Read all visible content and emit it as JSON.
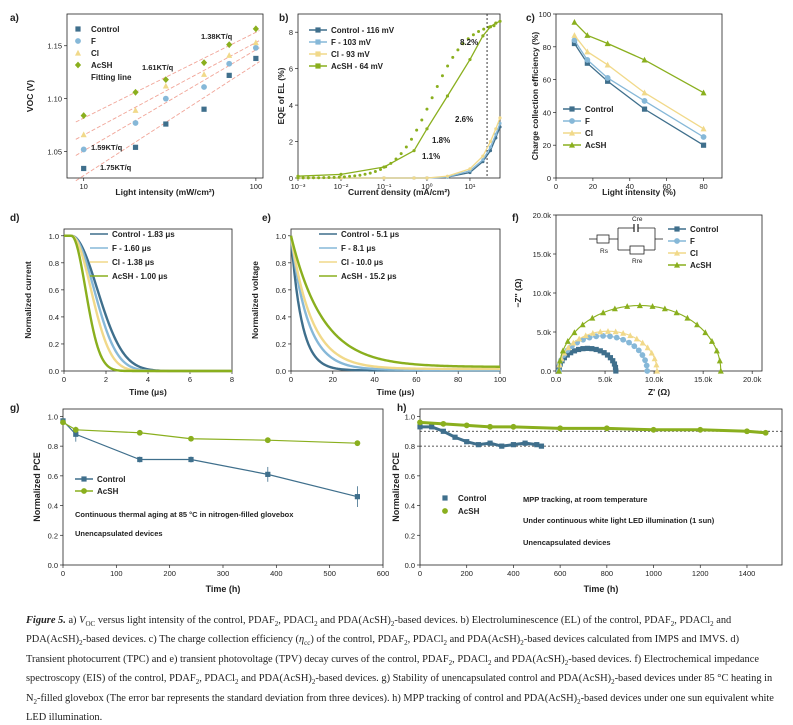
{
  "colors": {
    "control": "#3f6f8c",
    "F": "#86b8d8",
    "Cl": "#f1d98a",
    "AcSH": "#8aaf1e",
    "fit_line": "#f1a598",
    "axis": "#222222"
  },
  "caption": {
    "label": "Figure 5.",
    "parts": [
      " a) ",
      "V",
      "OC",
      " versus light intensity of the control, PDAF",
      "2",
      ", PDACl",
      "2",
      " and PDA(AcSH)",
      "2",
      "-based devices. b) Electroluminescence (EL) of the control, PDAF",
      "2",
      ", PDACl",
      "2",
      " and PDA(AcSH)",
      "2",
      "-based devices. c) The charge collection efficiency (",
      "η",
      "cc",
      ") of the control, PDAF",
      "2",
      ", PDACl",
      "2",
      " and PDA(AcSH)",
      "2",
      "-based devices calculated from IMPS and IMVS. d) Transient photocurrent (TPC) and e) transient photovoltage (TPV) decay curves of the control, PDAF",
      "2",
      ", PDACl",
      "2",
      " and PDA(AcSH)",
      "2",
      "-based devices. f) Electrochemical impedance spectroscopy (EIS) of the control, PDAF",
      "2",
      ", PDACl",
      "2",
      " and PDA(AcSH)",
      "2",
      "-based devices. g) Stability of unencapsulated control and PDA(AcSH)",
      "2",
      "-based devices under 85 °C heating in N",
      "2",
      "-filled glovebox (The error bar represents the standard deviation from three devices). h) MPP tracking of control and PDA(AcSH)",
      "2",
      "-based devices under one sun equivalent white LED illumination."
    ]
  },
  "chart_data": [
    {
      "panel": "a)",
      "type": "scatter",
      "xlabel": "Light intensity (mW/cm²)",
      "ylabel": "VOC (V)",
      "xscale": "log",
      "xlim": [
        8,
        110
      ],
      "ylim": [
        1.025,
        1.18
      ],
      "xticks": [
        10,
        100
      ],
      "xtick_labels": [
        "10",
        "100"
      ],
      "yticks": [
        1.05,
        1.1,
        1.15
      ],
      "ytick_labels": [
        "1.05",
        "1.10",
        "1.15"
      ],
      "x": [
        10,
        20,
        30,
        50,
        70,
        100
      ],
      "series": [
        {
          "name": "Control",
          "marker": "square",
          "values": [
            1.034,
            1.054,
            1.076,
            1.09,
            1.122,
            1.138
          ]
        },
        {
          "name": "F",
          "marker": "circle",
          "values": [
            1.052,
            1.077,
            1.1,
            1.111,
            1.133,
            1.148
          ]
        },
        {
          "name": "Cl",
          "marker": "triangle",
          "values": [
            1.066,
            1.089,
            1.112,
            1.123,
            1.141,
            1.153
          ]
        },
        {
          "name": "AcSH",
          "marker": "diamond",
          "values": [
            1.084,
            1.106,
            1.118,
            1.134,
            1.151,
            1.166
          ]
        }
      ],
      "legend": [
        "Control",
        "F",
        "Cl",
        "AcSH",
        "Fitting line"
      ],
      "annotations": [
        "1.38KT/q",
        "1.61KT/q",
        "1.59KT/q",
        "1.75KT/q"
      ]
    },
    {
      "panel": "b)",
      "type": "line",
      "xlabel": "Current density (mA/cm²)",
      "ylabel": "EQE of EL (%)",
      "xscale": "log",
      "xlim": [
        0.001,
        50
      ],
      "ylim": [
        0,
        9
      ],
      "xtick_labels": [
        "10⁻³",
        "10⁻²",
        "10⁻¹",
        "10⁰",
        "10¹"
      ],
      "yticks": [
        0,
        2,
        4,
        6,
        8
      ],
      "ytick_labels": [
        "0",
        "2",
        "4",
        "6",
        "8"
      ],
      "x": [
        0.001,
        0.01,
        0.1,
        0.5,
        1,
        3,
        10,
        20,
        30,
        40,
        50
      ],
      "series": [
        {
          "name": "Control - 116 mV",
          "values": [
            0,
            0,
            0,
            0,
            0,
            0.05,
            0.3,
            0.9,
            1.5,
            2.2,
            2.8
          ]
        },
        {
          "name": "F - 103 mV",
          "values": [
            0,
            0,
            0,
            0,
            0,
            0.05,
            0.4,
            1.0,
            1.7,
            2.4,
            3.0
          ]
        },
        {
          "name": "Cl - 93 mV",
          "values": [
            0,
            0,
            0,
            0,
            0,
            0.1,
            0.5,
            1.2,
            2.0,
            2.7,
            3.3
          ]
        },
        {
          "name": "AcSH - 64 mV",
          "values": [
            0.1,
            0.2,
            0.6,
            1.5,
            2.7,
            4.5,
            6.5,
            7.8,
            8.3,
            8.5,
            8.6
          ]
        }
      ],
      "annotations": [
        "8.2%",
        "2.6%",
        "1.8%",
        "1.1%"
      ]
    },
    {
      "panel": "c)",
      "type": "line",
      "xlabel": "Light intensity (%)",
      "ylabel": "Charge collection efficiency (%)",
      "xlim": [
        0,
        90
      ],
      "ylim": [
        0,
        100
      ],
      "xticks": [
        0,
        20,
        40,
        60,
        80
      ],
      "xtick_labels": [
        "0",
        "20",
        "40",
        "60",
        "80"
      ],
      "yticks": [
        0,
        20,
        40,
        60,
        80,
        100
      ],
      "ytick_labels": [
        "0",
        "20",
        "40",
        "60",
        "80",
        "100"
      ],
      "x": [
        10,
        17,
        28,
        48,
        80
      ],
      "series": [
        {
          "name": "Control",
          "values": [
            82,
            70,
            59,
            42,
            20
          ]
        },
        {
          "name": "F",
          "values": [
            84,
            72,
            61,
            47,
            25
          ]
        },
        {
          "name": "Cl",
          "values": [
            87,
            77,
            69,
            52,
            30
          ]
        },
        {
          "name": "AcSH",
          "values": [
            95,
            87,
            82,
            72,
            52
          ]
        }
      ]
    },
    {
      "panel": "d)",
      "type": "line",
      "xlabel": "Time (μs)",
      "ylabel": "Normalized current",
      "xlim": [
        0,
        8
      ],
      "ylim": [
        0,
        1.05
      ],
      "xticks": [
        0,
        2,
        4,
        6,
        8
      ],
      "xtick_labels": [
        "0",
        "2",
        "4",
        "6",
        "8"
      ],
      "yticks": [
        0,
        0.2,
        0.4,
        0.6,
        0.8,
        1.0
      ],
      "ytick_labels": [
        "0.0",
        "0.2",
        "0.4",
        "0.6",
        "0.8",
        "1.0"
      ],
      "series": [
        {
          "name": "Control - 1.83 μs",
          "tau": 1.83
        },
        {
          "name": "F - 1.60 μs",
          "tau": 1.6
        },
        {
          "name": "Cl - 1.38 μs",
          "tau": 1.38
        },
        {
          "name": "AcSH - 1.00 μs",
          "tau": 1.0
        }
      ]
    },
    {
      "panel": "e)",
      "type": "line",
      "xlabel": "Time (μs)",
      "ylabel": "Normalized voltage",
      "xlim": [
        0,
        100
      ],
      "ylim": [
        0,
        1.05
      ],
      "xticks": [
        0,
        20,
        40,
        60,
        80,
        100
      ],
      "xtick_labels": [
        "0",
        "20",
        "40",
        "60",
        "80",
        "100"
      ],
      "yticks": [
        0,
        0.2,
        0.4,
        0.6,
        0.8,
        1.0
      ],
      "ytick_labels": [
        "0.0",
        "0.2",
        "0.4",
        "0.6",
        "0.8",
        "1.0"
      ],
      "series": [
        {
          "name": "Control - 5.1 μs",
          "tau": 5.1
        },
        {
          "name": "F - 8.1 μs",
          "tau": 8.1
        },
        {
          "name": "Cl - 10.0 μs",
          "tau": 10.0
        },
        {
          "name": "AcSH - 15.2 μs",
          "tau": 15.2
        }
      ]
    },
    {
      "panel": "f)",
      "type": "scatter",
      "xlabel": "Z' (Ω)",
      "ylabel": "−Z'' (Ω)",
      "xlim": [
        0,
        21000
      ],
      "ylim": [
        0,
        20000
      ],
      "xticks": [
        0,
        5000,
        10000,
        15000,
        20000
      ],
      "xtick_labels": [
        "0.0",
        "5.0k",
        "10.0k",
        "15.0k",
        "20.0k"
      ],
      "yticks": [
        0,
        5000,
        10000,
        15000,
        20000
      ],
      "ytick_labels": [
        "0.0",
        "5.0k",
        "10.0k",
        "15.0k",
        "20.0k"
      ],
      "series": [
        {
          "name": "Control",
          "arc_start": 300,
          "arc_end": 6100,
          "peak": 2900
        },
        {
          "name": "F",
          "arc_start": 300,
          "arc_end": 9300,
          "peak": 4500
        },
        {
          "name": "Cl",
          "arc_start": 300,
          "arc_end": 10300,
          "peak": 5100
        },
        {
          "name": "AcSH",
          "arc_start": 300,
          "arc_end": 16800,
          "peak": 8400
        }
      ],
      "circuit_labels": [
        "Cre",
        "Rs",
        "Rre"
      ]
    },
    {
      "panel": "g)",
      "type": "line",
      "xlabel": "Time (h)",
      "ylabel": "Normalized PCE",
      "xlim": [
        0,
        600
      ],
      "ylim": [
        0,
        1.05
      ],
      "xticks": [
        0,
        100,
        200,
        300,
        400,
        500,
        600
      ],
      "xtick_labels": [
        "0",
        "100",
        "200",
        "300",
        "400",
        "500",
        "600"
      ],
      "yticks": [
        0,
        0.2,
        0.4,
        0.6,
        0.8,
        1.0
      ],
      "ytick_labels": [
        "0.0",
        "0.2",
        "0.4",
        "0.6",
        "0.8",
        "1.0"
      ],
      "x": [
        0,
        24,
        144,
        240,
        384,
        552
      ],
      "series": [
        {
          "name": "Control",
          "values": [
            0.97,
            0.88,
            0.71,
            0.71,
            0.61,
            0.46
          ],
          "errors": [
            0.01,
            0.05,
            0.02,
            0.02,
            0.05,
            0.07
          ]
        },
        {
          "name": "AcSH",
          "values": [
            0.96,
            0.91,
            0.89,
            0.85,
            0.84,
            0.82
          ],
          "errors": [
            0.01,
            0.02,
            0.01,
            0.01,
            0.01,
            0.01
          ]
        }
      ],
      "annotations": [
        "Continuous thermal aging at 85 °C in nitrogen-filled glovebox",
        "Unencapsulated devices"
      ]
    },
    {
      "panel": "h)",
      "type": "line",
      "xlabel": "Time (h)",
      "ylabel": "Normalized PCE",
      "xlim": [
        0,
        1550
      ],
      "ylim": [
        0,
        1.05
      ],
      "xticks": [
        0,
        200,
        400,
        600,
        800,
        1000,
        1200,
        1400
      ],
      "xtick_labels": [
        "0",
        "200",
        "400",
        "600",
        "800",
        "1000",
        "1200",
        "1400"
      ],
      "yticks": [
        0,
        0.2,
        0.4,
        0.6,
        0.8,
        1.0
      ],
      "ytick_labels": [
        "0.0",
        "0.2",
        "0.4",
        "0.6",
        "0.8",
        "1.0"
      ],
      "reference_lines": [
        0.9,
        0.8
      ],
      "series": [
        {
          "name": "Control",
          "x": [
            0,
            50,
            100,
            150,
            200,
            250,
            300,
            350,
            400,
            450,
            500,
            520
          ],
          "values": [
            0.93,
            0.93,
            0.9,
            0.86,
            0.83,
            0.81,
            0.82,
            0.8,
            0.81,
            0.82,
            0.81,
            0.8
          ]
        },
        {
          "name": "AcSH",
          "x": [
            0,
            100,
            200,
            300,
            400,
            600,
            800,
            1000,
            1200,
            1400,
            1480
          ],
          "values": [
            0.96,
            0.95,
            0.94,
            0.93,
            0.93,
            0.92,
            0.92,
            0.91,
            0.91,
            0.9,
            0.89
          ]
        }
      ],
      "annotations": [
        "MPP tracking, at room temperature",
        "Under continuous white light LED illumination (1 sun)",
        "Unencapsulated devices"
      ]
    }
  ]
}
